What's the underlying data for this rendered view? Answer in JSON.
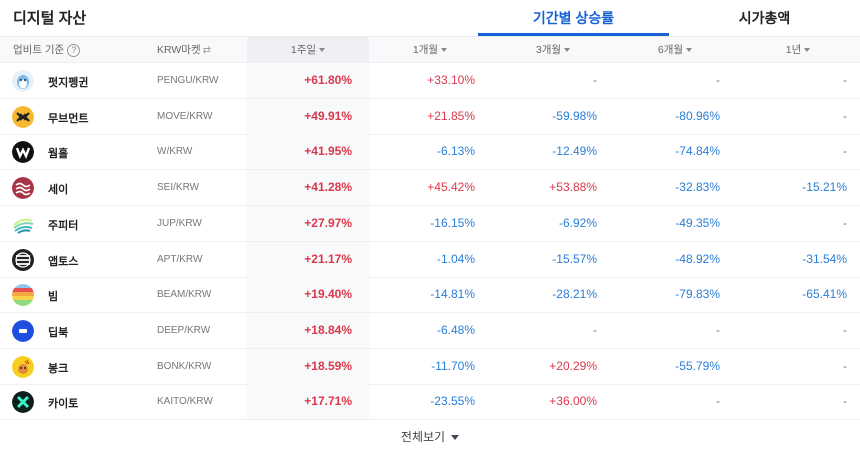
{
  "header": {
    "title": "디지털 자산",
    "tabs": [
      {
        "label": "기간별 상승률",
        "active": true
      },
      {
        "label": "시가총액",
        "active": false
      }
    ],
    "accent_color": "#1763d6"
  },
  "table": {
    "columns": {
      "source": "업비트 기준",
      "help": "?",
      "market": "KRW마켓",
      "market_icon": "⇄",
      "w1": "1주일",
      "m1": "1개월",
      "m3": "3개월",
      "m6": "6개월",
      "y1": "1년"
    },
    "sorted_column": "1주일",
    "rows": [
      {
        "name": "펏지펭귄",
        "pair": "PENGU/KRW",
        "w1": "+61.80%",
        "m1": "+33.10%",
        "m3": "-",
        "m6": "-",
        "y1": "-"
      },
      {
        "name": "무브먼트",
        "pair": "MOVE/KRW",
        "w1": "+49.91%",
        "m1": "+21.85%",
        "m3": "-59.98%",
        "m6": "-80.96%",
        "y1": "-"
      },
      {
        "name": "웜홀",
        "pair": "W/KRW",
        "w1": "+41.95%",
        "m1": "-6.13%",
        "m3": "-12.49%",
        "m6": "-74.84%",
        "y1": "-"
      },
      {
        "name": "세이",
        "pair": "SEI/KRW",
        "w1": "+41.28%",
        "m1": "+45.42%",
        "m3": "+53.88%",
        "m6": "-32.83%",
        "y1": "-15.21%"
      },
      {
        "name": "주피터",
        "pair": "JUP/KRW",
        "w1": "+27.97%",
        "m1": "-16.15%",
        "m3": "-6.92%",
        "m6": "-49.35%",
        "y1": "-"
      },
      {
        "name": "앱토스",
        "pair": "APT/KRW",
        "w1": "+21.17%",
        "m1": "-1.04%",
        "m3": "-15.57%",
        "m6": "-48.92%",
        "y1": "-31.54%"
      },
      {
        "name": "빔",
        "pair": "BEAM/KRW",
        "w1": "+19.40%",
        "m1": "-14.81%",
        "m3": "-28.21%",
        "m6": "-79.83%",
        "y1": "-65.41%"
      },
      {
        "name": "딥북",
        "pair": "DEEP/KRW",
        "w1": "+18.84%",
        "m1": "-6.48%",
        "m3": "-",
        "m6": "-",
        "y1": "-"
      },
      {
        "name": "봉크",
        "pair": "BONK/KRW",
        "w1": "+18.59%",
        "m1": "-11.70%",
        "m3": "+20.29%",
        "m6": "-55.79%",
        "y1": "-"
      },
      {
        "name": "카이토",
        "pair": "KAITO/KRW",
        "w1": "+17.71%",
        "m1": "-23.55%",
        "m3": "+36.00%",
        "m6": "-",
        "y1": "-"
      }
    ],
    "colors": {
      "up": "#d9394a",
      "down": "#2a7ed8"
    }
  },
  "footer": {
    "view_all": "전체보기"
  }
}
